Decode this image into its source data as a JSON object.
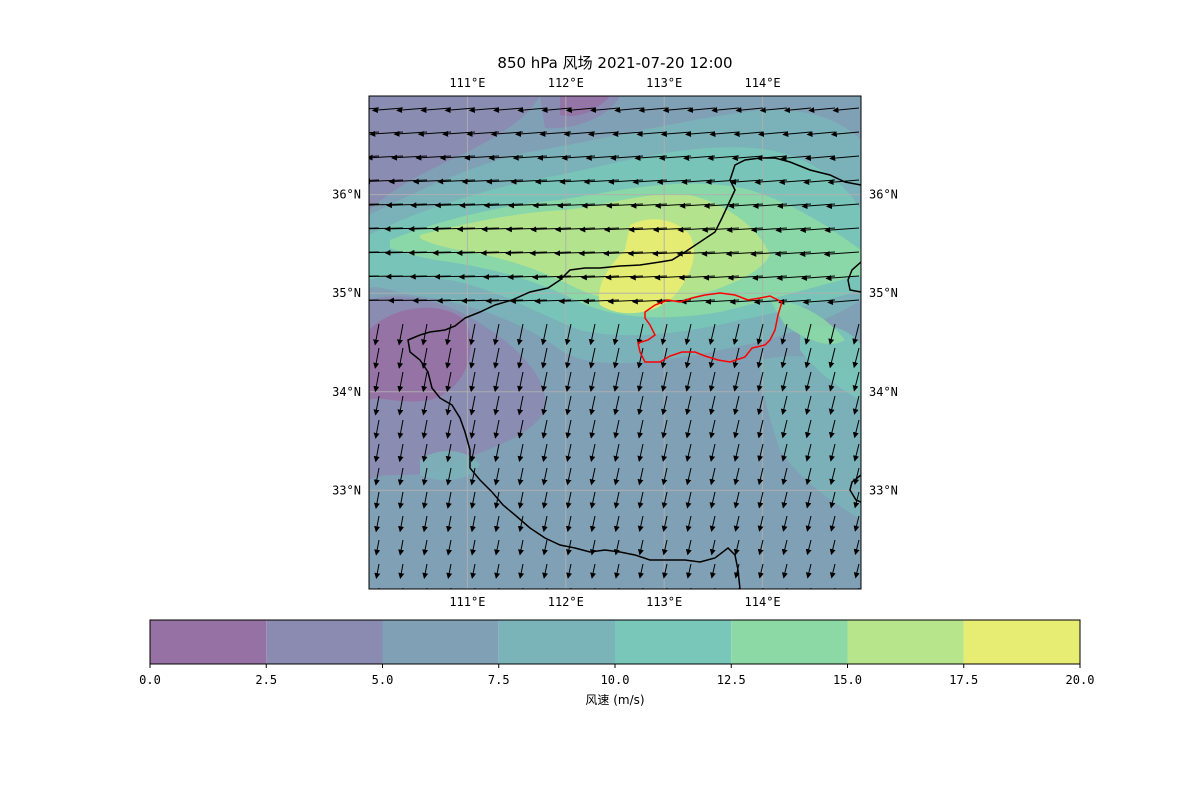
{
  "title": "850 hPa 风场 2021-07-20 12:00",
  "map": {
    "lon_range": [
      110,
      115
    ],
    "lat_range": [
      32,
      37
    ],
    "gridlines": true,
    "lon_ticks": [
      111,
      112,
      113,
      114
    ],
    "lat_ticks": [
      33,
      34,
      35,
      36
    ],
    "lon_tick_labels": [
      "111°E",
      "112°E",
      "113°E",
      "114°E"
    ],
    "lat_tick_labels": [
      "33°N",
      "34°N",
      "35°N",
      "36°N"
    ],
    "field": "wind speed (filled contours) with wind vectors",
    "highlight_region_color": "#ff0000",
    "boundary_color": "#000000"
  },
  "colorbar": {
    "label": "风速 (m/s)",
    "levels": [
      0,
      2.5,
      5,
      7.5,
      10,
      12.5,
      15,
      17.5,
      20
    ],
    "tick_labels": [
      "0.0",
      "2.5",
      "5.0",
      "7.5",
      "10.0",
      "12.5",
      "15.0",
      "17.5",
      "20.0"
    ],
    "colors": [
      "#9672a4",
      "#8b8ab0",
      "#80a0b5",
      "#7ab3b8",
      "#79c7b8",
      "#8cd9a5",
      "#b7e58b",
      "#e7ec72"
    ]
  }
}
